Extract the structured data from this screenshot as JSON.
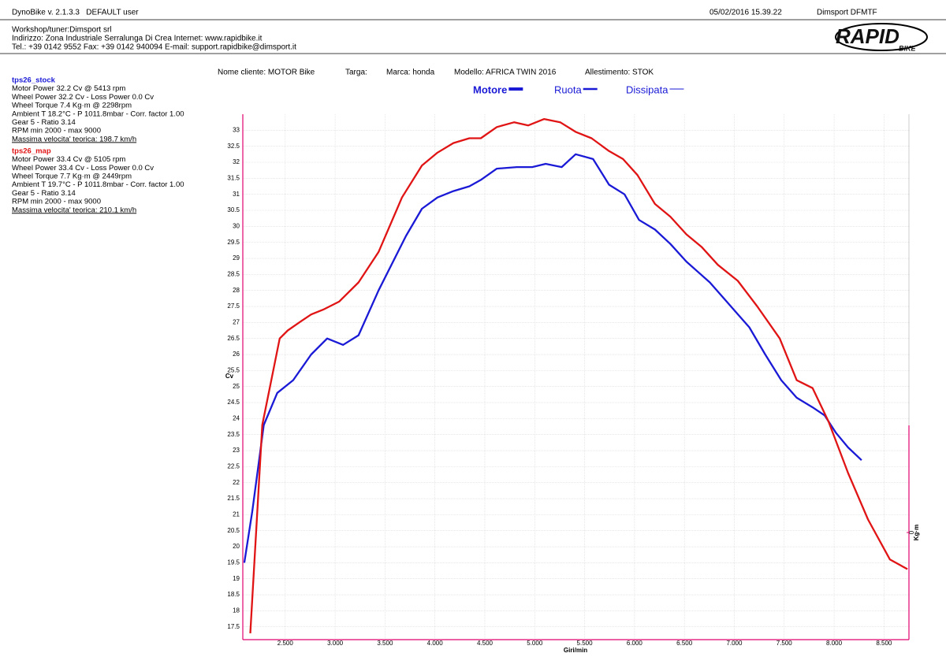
{
  "header": {
    "app": "DynoBike v. 2.1.3.3   DEFAULT user",
    "datetime": "05/02/2016 15.39.22",
    "device": "Dimsport DFMTF"
  },
  "workshop": [
    "Workshop/tuner:Dimsport srl",
    "Indirizzo: Zona Industriale Serralunga Di Crea Internet: www.rapidbike.it",
    "Tel.: +39 0142 9552 Fax: +39 0142 940094 E-mail: support.rapidbike@dimsport.it"
  ],
  "logo": {
    "main": "RAPID",
    "sub": "BIKE"
  },
  "customer": [
    "Nome cliente: MOTOR Bike",
    "Targa:",
    "Marca: honda",
    "Modello: AFRICA TWIN 2016",
    "Allestimento: STOK"
  ],
  "chart_data": {
    "type": "line",
    "legend_items": [
      "Motore",
      "Ruota",
      "Dissipata"
    ],
    "x_label": "Giri/min",
    "y_label": "Cv",
    "y2_label": "Kg·m",
    "xlim": [
      2075,
      8750
    ],
    "xticks": [
      {
        "value": 2500,
        "label": "2.500"
      },
      {
        "value": 3000,
        "label": "3.000"
      },
      {
        "value": 3500,
        "label": "3.500"
      },
      {
        "value": 4000,
        "label": "4.000"
      },
      {
        "value": 4500,
        "label": "4.500"
      },
      {
        "value": 5000,
        "label": "5.000"
      },
      {
        "value": 5500,
        "label": "5.500"
      },
      {
        "value": 6000,
        "label": "6.000"
      },
      {
        "value": 6500,
        "label": "6.500"
      },
      {
        "value": 7000,
        "label": "7.000"
      },
      {
        "value": 7500,
        "label": "7.500"
      },
      {
        "value": 8000,
        "label": "8.000"
      },
      {
        "value": 8500,
        "label": "8.500"
      }
    ],
    "ylim": [
      17.1,
      33.5
    ],
    "yticks": [
      17.5,
      18,
      18.5,
      19,
      19.5,
      20,
      20.5,
      21,
      21.5,
      22,
      22.5,
      23,
      23.5,
      24,
      24.5,
      25,
      25.5,
      26,
      26.5,
      27,
      27.5,
      28,
      28.5,
      29,
      29.5,
      30,
      30.5,
      31,
      31.5,
      32,
      32.5,
      33
    ],
    "y2lim": [
      -1,
      1
    ],
    "y2ticks": [
      0
    ],
    "grid": true,
    "series": [
      {
        "name": "tps26_stock",
        "color": "#1a1ad6",
        "info": [
          "Motor Power 32.2 Cv  @ 5413 rpm",
          "Wheel Power 32.2 Cv  - Loss Power 0.0 Cv",
          "Wheel Torque 7.4 Kg·m  @ 2298rpm",
          "Ambient T 18.2°C - P 1011.8mbar - Corr. factor 1.00",
          "Gear 5 - Ratio 3.14",
          "RPM min 2000 - max 9000"
        ],
        "top_speed": "Massima velocita' teorica: 198.7 km/h",
        "x": [
          2090,
          2170,
          2285,
          2420,
          2580,
          2760,
          2920,
          3080,
          3235,
          3435,
          3710,
          3870,
          4025,
          4185,
          4345,
          4460,
          4620,
          4820,
          4975,
          5110,
          5270,
          5410,
          5585,
          5745,
          5900,
          6045,
          6205,
          6360,
          6520,
          6755,
          6995,
          7150,
          7310,
          7470,
          7625,
          7785,
          7905,
          8020,
          8140,
          8275
        ],
        "values": [
          19.5,
          21.1,
          23.8,
          24.8,
          25.2,
          26.0,
          26.5,
          26.3,
          26.6,
          28.0,
          29.7,
          30.55,
          30.9,
          31.1,
          31.25,
          31.45,
          31.8,
          31.85,
          31.85,
          31.95,
          31.85,
          32.25,
          32.1,
          31.3,
          31.0,
          30.2,
          29.9,
          29.45,
          28.9,
          28.25,
          27.4,
          26.85,
          26.0,
          25.2,
          24.65,
          24.35,
          24.1,
          23.55,
          23.1,
          22.7
        ]
      },
      {
        "name": "tps26_map",
        "color": "#e01414",
        "info": [
          "Motor Power 33.4 Cv  @ 5105 rpm",
          "Wheel Power 33.4 Cv  - Loss Power 0.0 Cv",
          "Wheel Torque 7.7 Kg·m  @ 2449rpm",
          "Ambient T 19.7°C - P 1011.8mbar - Corr. factor 1.00",
          "Gear 5 - Ratio 3.14",
          "RPM min 2000 - max 9000"
        ],
        "top_speed": "Massima velocita' teorica: 210.1 km/h",
        "x": [
          2150,
          2270,
          2445,
          2525,
          2640,
          2760,
          2880,
          3040,
          3235,
          3435,
          3670,
          3870,
          4025,
          4185,
          4345,
          4460,
          4620,
          4795,
          4935,
          5095,
          5255,
          5410,
          5570,
          5745,
          5885,
          6030,
          6205,
          6360,
          6520,
          6675,
          6835,
          7035,
          7230,
          7455,
          7625,
          7785,
          7945,
          8140,
          8340,
          8560,
          8735
        ],
        "values": [
          17.3,
          23.8,
          26.5,
          26.75,
          27.0,
          27.25,
          27.4,
          27.65,
          28.25,
          29.2,
          30.9,
          31.9,
          32.3,
          32.6,
          32.75,
          32.75,
          33.1,
          33.25,
          33.15,
          33.35,
          33.25,
          32.95,
          32.75,
          32.35,
          32.1,
          31.6,
          30.7,
          30.3,
          29.75,
          29.35,
          28.8,
          28.3,
          27.5,
          26.5,
          25.2,
          24.95,
          23.9,
          22.3,
          20.85,
          19.6,
          19.3
        ]
      }
    ]
  }
}
